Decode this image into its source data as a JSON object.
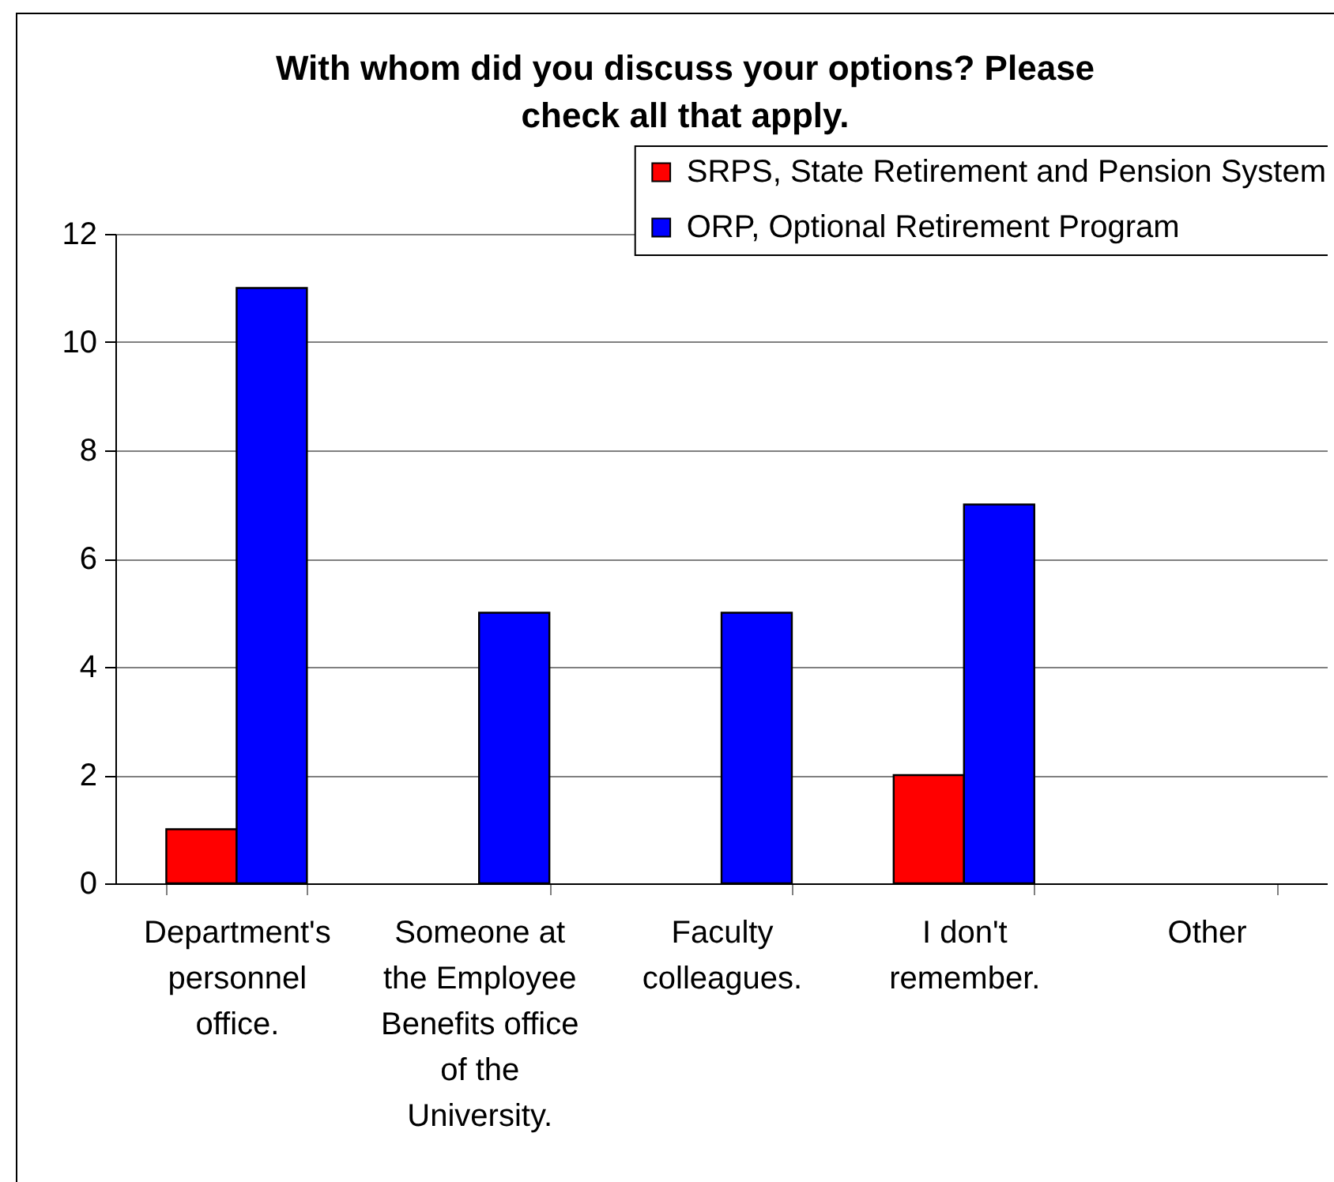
{
  "chart_data": {
    "type": "bar",
    "title": "With whom did you discuss your options?  Please check all that apply.",
    "categories": [
      "Department's personnel office.",
      "Someone at the Employee Benefits office of the University.",
      "Faculty colleagues.",
      "I don't remember.",
      "Other"
    ],
    "series": [
      {
        "name": "SRPS, State Retirement and Pension System",
        "color": "#ff0000",
        "values": [
          1,
          0,
          0,
          2,
          0
        ]
      },
      {
        "name": "ORP, Optional Retirement Program",
        "color": "#0000ff",
        "values": [
          11,
          5,
          5,
          7,
          0
        ]
      }
    ],
    "ylim": [
      0,
      12
    ],
    "yticks": [
      0,
      2,
      4,
      6,
      8,
      10,
      12
    ],
    "grid": "y",
    "legend": "top right"
  }
}
